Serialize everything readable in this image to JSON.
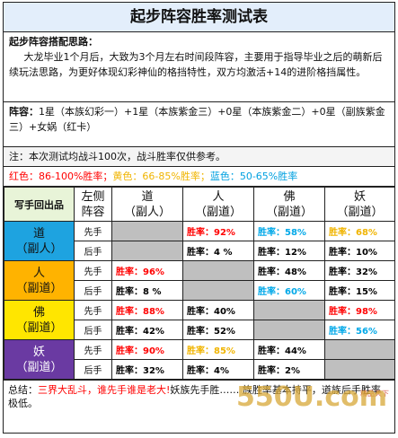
{
  "title": "起步阵容胜率测试表",
  "intro": {
    "heading": "起步阵容搭配思路：",
    "text": "大龙毕业1个月后，大致为3个月左右时间段阵容，主要用于指导毕业之后的萌新后续玩法思路，为更好体现幻彩神仙的格挡特性，双方均激活+14的进阶格挡属性。"
  },
  "lineup": {
    "label": "阵容：",
    "text": "1星（本族幻彩一）+1星（本族紫金三）+0星（本族紫金二）+0星（副族紫金三）+女娲（红卡）"
  },
  "note": "注：本次测试均战斗100次，战斗胜率仅供参考。",
  "legend": {
    "red": "红色：86-100%胜率；",
    "yellow": "黄色：66-85%胜率；",
    "blue": "蓝色：50-65%胜率"
  },
  "table": {
    "corner": "写手回出品",
    "left_header_1": "左侧",
    "left_header_2": "阵容",
    "columns": [
      {
        "name": "道",
        "sub": "（副人）"
      },
      {
        "name": "人",
        "sub": "（副道）"
      },
      {
        "name": "佛",
        "sub": "（副道）"
      },
      {
        "name": "妖",
        "sub": "（副道）"
      }
    ],
    "rows": [
      {
        "name": "道",
        "sub": "（副人）",
        "color": "#1ea3e0",
        "first": "先手",
        "second": "后手",
        "cells_first": [
          null,
          "胜率：92%",
          "胜率：58%",
          "胜率：68%"
        ],
        "cells_second": [
          null,
          "胜率：4 %",
          "胜率：12%",
          "胜率：10%"
        ],
        "colors_first": [
          "",
          "red",
          "blu",
          "yel"
        ],
        "colors_second": [
          "",
          "blk",
          "blk",
          "blk"
        ]
      },
      {
        "name": "人",
        "sub": "（副道）",
        "color": "#ffb300",
        "first": "先手",
        "second": "后手",
        "cells_first": [
          "胜率：96%",
          null,
          "胜率：48%",
          "胜率：32%"
        ],
        "cells_second": [
          "胜率：8 %",
          null,
          "胜率：60%",
          "胜率：15%"
        ],
        "colors_first": [
          "red",
          "",
          "blk",
          "blk"
        ],
        "colors_second": [
          "blk",
          "",
          "blu",
          "blk"
        ]
      },
      {
        "name": "佛",
        "sub": "（副道）",
        "color": "#ffe600",
        "first": "先手",
        "second": "后手",
        "cells_first": [
          "胜率：88%",
          "胜率：40%",
          null,
          "胜率：98%"
        ],
        "cells_second": [
          "胜率：42%",
          "胜率：52%",
          null,
          "胜率：56%"
        ],
        "colors_first": [
          "red",
          "blk",
          "",
          "red"
        ],
        "colors_second": [
          "blk",
          "blk",
          "",
          "blu"
        ]
      },
      {
        "name": "妖",
        "sub": "（副道）",
        "color": "#6a3aa2",
        "first": "先手",
        "second": "后手",
        "cells_first": [
          "胜率：90%",
          "胜率：85%",
          "胜率：44%",
          null
        ],
        "cells_second": [
          "胜率：32%",
          "胜率：4%",
          "胜率：2%",
          null
        ],
        "colors_first": [
          "red",
          "yel",
          "blk",
          ""
        ],
        "colors_second": [
          "blk",
          "blk",
          "blk",
          ""
        ]
      }
    ]
  },
  "summary": {
    "lead": "总结：",
    "highlight": "三界大乱斗，谁先手谁是老大!",
    "rest": "妖族先手胜…… 族胜率基本持平，道族后手胜率极低。"
  },
  "watermark": {
    "text": "550U.com",
    "sub": "精品天下"
  }
}
